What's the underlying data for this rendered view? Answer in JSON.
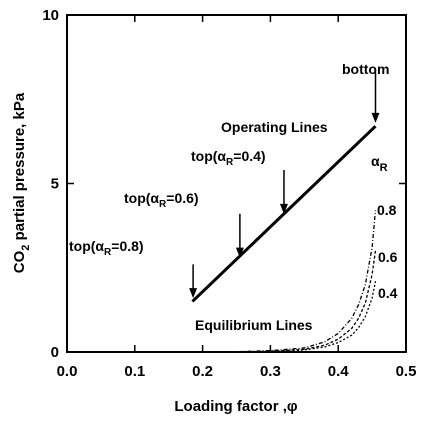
{
  "chart_data": {
    "type": "line",
    "xlabel": "Loading factor ,φ",
    "ylabel_main": "CO",
    "ylabel_sub": "2",
    "ylabel_rest": " partial pressure, kPa",
    "xlim": [
      0.0,
      0.5
    ],
    "ylim": [
      0,
      10
    ],
    "x_ticks": [
      "0.0",
      "0.1",
      "0.2",
      "0.3",
      "0.4",
      "0.5"
    ],
    "y_ticks": [
      "0",
      "5",
      "10"
    ],
    "y_tick_values": [
      0,
      5,
      10
    ],
    "x_tick_values": [
      0.0,
      0.1,
      0.2,
      0.3,
      0.4,
      0.5
    ],
    "operating_line": {
      "x": [
        0.185,
        0.455
      ],
      "y": [
        1.5,
        6.7
      ]
    },
    "equilibrium_curves": [
      {
        "alpha_label": "0.8",
        "x": [
          0.2,
          0.25,
          0.3,
          0.35,
          0.38,
          0.4,
          0.42,
          0.43,
          0.44,
          0.45,
          0.455
        ],
        "y": [
          0.0,
          0.01,
          0.04,
          0.12,
          0.3,
          0.55,
          1.0,
          1.4,
          2.0,
          3.1,
          4.2
        ]
      },
      {
        "alpha_label": "0.6",
        "x": [
          0.25,
          0.3,
          0.35,
          0.38,
          0.4,
          0.42,
          0.43,
          0.44,
          0.45,
          0.455
        ],
        "y": [
          0.0,
          0.02,
          0.08,
          0.2,
          0.38,
          0.7,
          1.0,
          1.45,
          2.3,
          3.0
        ]
      },
      {
        "alpha_label": "0.4",
        "x": [
          0.28,
          0.32,
          0.35,
          0.38,
          0.4,
          0.42,
          0.43,
          0.44,
          0.45,
          0.455
        ],
        "y": [
          0.0,
          0.02,
          0.06,
          0.15,
          0.28,
          0.5,
          0.72,
          1.05,
          1.6,
          2.1
        ]
      }
    ],
    "annotations": {
      "bottom": "bottom",
      "operating_lines": "Operating Lines",
      "equilibrium_lines": "Equilibrium Lines",
      "alpha_symbol": "α",
      "alpha_sub": "R",
      "top_prefix": "top(α",
      "top_sub": "R",
      "top_04": "=0.4)",
      "top_06": "=0.6)",
      "top_08": "=0.8)",
      "curve_08": "0.8",
      "curve_06": "0.6",
      "curve_04": "0.4"
    },
    "arrows": [
      {
        "name": "arrow-bottom",
        "x": 0.455,
        "y_from": 8.3,
        "y_to": 6.8
      },
      {
        "name": "arrow-top-04",
        "x": 0.32,
        "y_from": 5.4,
        "y_to": 4.1
      },
      {
        "name": "arrow-top-06",
        "x": 0.255,
        "y_from": 4.1,
        "y_to": 2.8
      },
      {
        "name": "arrow-top-08",
        "x": 0.186,
        "y_from": 2.6,
        "y_to": 1.6
      }
    ]
  }
}
